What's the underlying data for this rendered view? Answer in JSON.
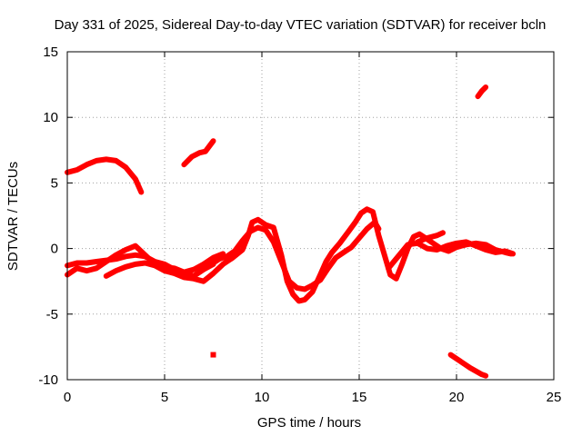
{
  "chart_data": {
    "type": "scatter",
    "title": "Day 331 of 2025, Sidereal Day-to-day VTEC variation (SDTVAR) for receiver bcln",
    "xlabel": "GPS time / hours",
    "ylabel": "SDTVAR / TECUs",
    "xlim": [
      0,
      25
    ],
    "ylim": [
      -10,
      15
    ],
    "xticks": [
      0,
      5,
      10,
      15,
      20,
      25
    ],
    "yticks": [
      -10,
      -5,
      0,
      5,
      10,
      15
    ],
    "xtick_labels": [
      "0",
      "5",
      "10",
      "15",
      "20",
      "25"
    ],
    "ytick_labels": [
      "-10",
      "-5",
      "0",
      "5",
      "10",
      "15"
    ],
    "grid": true,
    "marker_color": "#ff0000",
    "series": [
      {
        "name": "arc-1",
        "points": [
          [
            0,
            5.8
          ],
          [
            0.5,
            6.0
          ],
          [
            1.0,
            6.4
          ],
          [
            1.5,
            6.7
          ],
          [
            2.0,
            6.8
          ],
          [
            2.5,
            6.7
          ],
          [
            3.0,
            6.2
          ],
          [
            3.5,
            5.3
          ],
          [
            3.8,
            4.3
          ]
        ]
      },
      {
        "name": "arc-2",
        "points": [
          [
            6.0,
            6.4
          ],
          [
            6.4,
            7.0
          ],
          [
            6.8,
            7.3
          ],
          [
            7.1,
            7.4
          ],
          [
            7.5,
            8.2
          ]
        ]
      },
      {
        "name": "arc-3",
        "points": [
          [
            7.5,
            -8.1
          ]
        ]
      },
      {
        "name": "arc-4",
        "points": [
          [
            21.1,
            11.6
          ],
          [
            21.3,
            12.0
          ],
          [
            21.5,
            12.3
          ]
        ]
      },
      {
        "name": "arc-5",
        "points": [
          [
            19.7,
            -8.1
          ],
          [
            20.2,
            -8.6
          ],
          [
            20.7,
            -9.1
          ],
          [
            21.3,
            -9.6
          ],
          [
            21.5,
            -9.7
          ]
        ]
      },
      {
        "name": "arc-6",
        "points": [
          [
            0,
            -2.0
          ],
          [
            0.5,
            -1.5
          ],
          [
            1.0,
            -1.7
          ],
          [
            1.5,
            -1.5
          ],
          [
            2.0,
            -1.0
          ],
          [
            2.5,
            -0.5
          ],
          [
            3.0,
            -0.1
          ],
          [
            3.5,
            0.2
          ],
          [
            4.0,
            -0.5
          ],
          [
            4.5,
            -1.2
          ],
          [
            5.0,
            -1.4
          ],
          [
            5.5,
            -1.5
          ],
          [
            6.0,
            -1.8
          ],
          [
            6.5,
            -2.1
          ],
          [
            7.0,
            -1.6
          ],
          [
            7.5,
            -1.2
          ]
        ]
      },
      {
        "name": "arc-7",
        "points": [
          [
            0,
            -1.3
          ],
          [
            0.5,
            -1.1
          ],
          [
            1.0,
            -1.1
          ],
          [
            1.5,
            -1.0
          ],
          [
            2.0,
            -0.9
          ],
          [
            2.5,
            -0.8
          ],
          [
            3.0,
            -0.6
          ],
          [
            3.5,
            -0.5
          ],
          [
            4.0,
            -0.6
          ],
          [
            4.5,
            -1.0
          ],
          [
            5.0,
            -1.2
          ],
          [
            5.5,
            -1.6
          ],
          [
            6.0,
            -1.8
          ],
          [
            6.5,
            -1.6
          ],
          [
            7.0,
            -1.2
          ],
          [
            7.5,
            -0.7
          ],
          [
            8.0,
            -0.4
          ]
        ]
      },
      {
        "name": "arc-8",
        "points": [
          [
            2.0,
            -2.1
          ],
          [
            2.5,
            -1.7
          ],
          [
            3.0,
            -1.4
          ],
          [
            3.5,
            -1.2
          ],
          [
            4.0,
            -1.1
          ],
          [
            4.5,
            -1.3
          ],
          [
            5.0,
            -1.7
          ],
          [
            5.5,
            -1.9
          ],
          [
            6.0,
            -2.2
          ],
          [
            6.5,
            -2.3
          ],
          [
            7.0,
            -2.5
          ],
          [
            7.5,
            -1.9
          ],
          [
            8.0,
            -1.2
          ],
          [
            8.5,
            -0.7
          ],
          [
            9.0,
            -0.1
          ],
          [
            9.3,
            1.0
          ],
          [
            9.5,
            2.0
          ],
          [
            9.8,
            2.2
          ],
          [
            10.2,
            1.8
          ],
          [
            10.6,
            1.6
          ],
          [
            11.0,
            -0.5
          ],
          [
            11.3,
            -2.5
          ],
          [
            11.6,
            -3.5
          ],
          [
            11.9,
            -4.0
          ],
          [
            12.2,
            -3.9
          ],
          [
            12.6,
            -3.3
          ],
          [
            13.0,
            -2.0
          ],
          [
            13.3,
            -1.0
          ],
          [
            13.6,
            -0.3
          ],
          [
            14.0,
            0.4
          ],
          [
            14.4,
            1.2
          ],
          [
            14.8,
            2.0
          ],
          [
            15.1,
            2.7
          ],
          [
            15.4,
            3.0
          ],
          [
            15.7,
            2.8
          ],
          [
            16.0,
            1.0
          ],
          [
            16.3,
            -0.5
          ],
          [
            16.6,
            -2.0
          ],
          [
            16.9,
            -2.3
          ],
          [
            17.2,
            -1.2
          ],
          [
            17.5,
            0.0
          ],
          [
            17.8,
            0.9
          ],
          [
            18.1,
            1.1
          ],
          [
            18.4,
            0.8
          ],
          [
            18.8,
            0.4
          ],
          [
            19.2,
            0.0
          ],
          [
            19.6,
            -0.2
          ],
          [
            20.0,
            0.1
          ],
          [
            20.5,
            0.3
          ],
          [
            21.0,
            0.4
          ],
          [
            21.5,
            0.3
          ],
          [
            22.0,
            -0.1
          ],
          [
            22.5,
            -0.3
          ],
          [
            22.8,
            -0.4
          ]
        ]
      },
      {
        "name": "arc-9",
        "points": [
          [
            7.3,
            -1.3
          ],
          [
            7.8,
            -0.8
          ],
          [
            8.2,
            -0.6
          ],
          [
            8.6,
            -0.2
          ],
          [
            9.0,
            0.6
          ],
          [
            9.4,
            1.3
          ],
          [
            9.8,
            1.6
          ],
          [
            10.2,
            1.4
          ],
          [
            10.6,
            0.5
          ],
          [
            11.0,
            -1.0
          ],
          [
            11.4,
            -2.5
          ],
          [
            11.8,
            -3.0
          ],
          [
            12.2,
            -3.1
          ],
          [
            12.6,
            -2.8
          ],
          [
            13.0,
            -2.4
          ],
          [
            13.4,
            -1.5
          ],
          [
            13.8,
            -0.7
          ],
          [
            14.2,
            -0.3
          ],
          [
            14.6,
            0.1
          ],
          [
            15.0,
            0.8
          ],
          [
            15.4,
            1.5
          ],
          [
            15.8,
            2.0
          ],
          [
            16.0,
            1.5
          ]
        ]
      },
      {
        "name": "arc-10",
        "points": [
          [
            16.5,
            -1.5
          ],
          [
            17.0,
            -0.6
          ],
          [
            17.5,
            0.3
          ],
          [
            18.0,
            0.4
          ],
          [
            18.5,
            0.0
          ],
          [
            19.0,
            -0.1
          ],
          [
            19.5,
            0.2
          ],
          [
            20.0,
            0.4
          ],
          [
            20.5,
            0.5
          ],
          [
            21.0,
            0.2
          ],
          [
            21.5,
            -0.1
          ],
          [
            22.0,
            -0.3
          ],
          [
            22.5,
            -0.2
          ],
          [
            22.9,
            -0.4
          ]
        ]
      },
      {
        "name": "arc-11",
        "points": [
          [
            18.0,
            0.5
          ],
          [
            18.5,
            0.8
          ],
          [
            19.0,
            1.0
          ],
          [
            19.3,
            1.2
          ]
        ]
      }
    ]
  }
}
